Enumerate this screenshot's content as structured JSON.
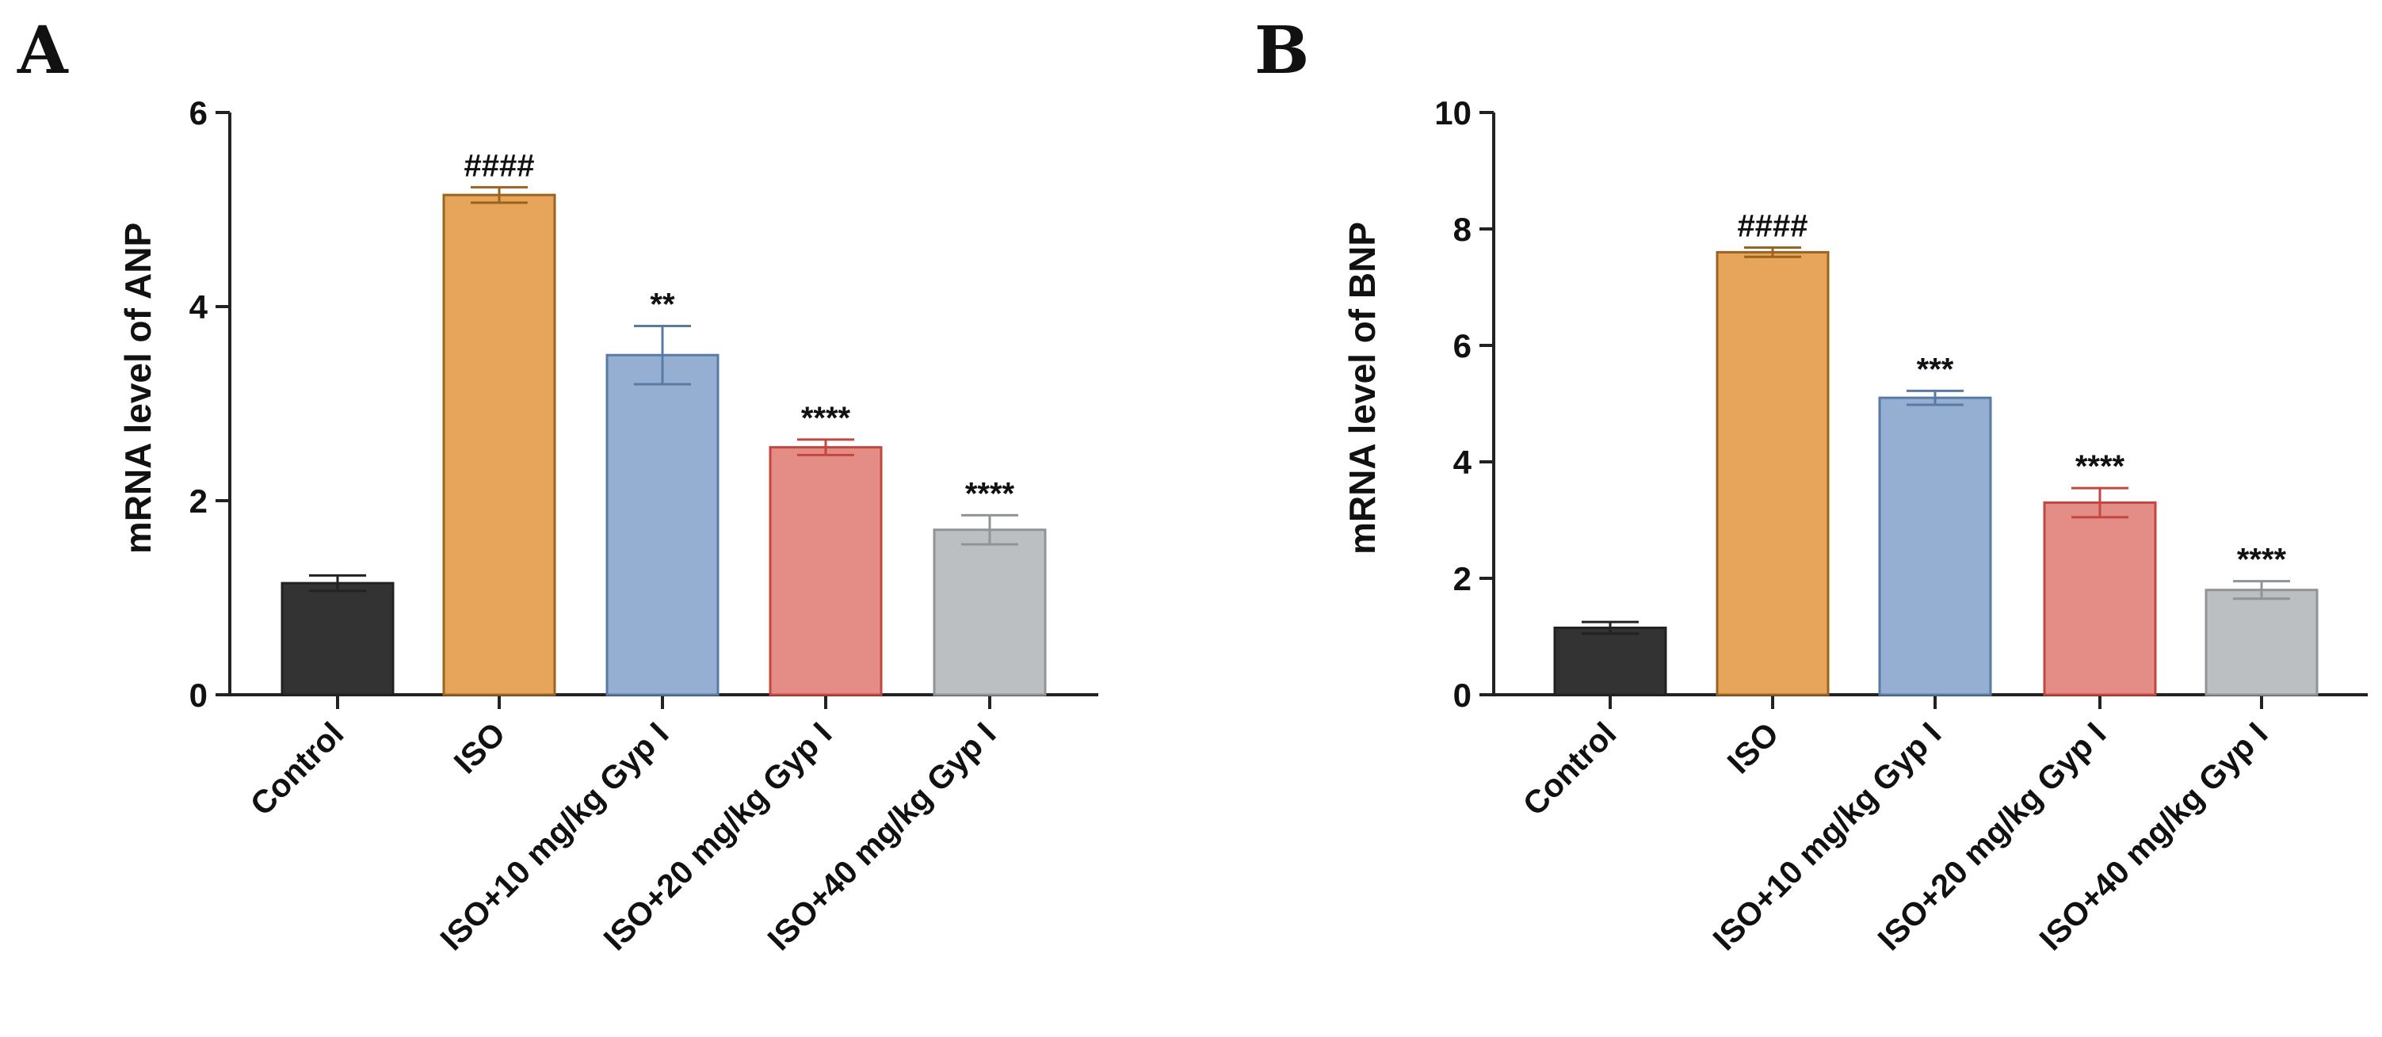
{
  "chart_data": [
    {
      "type": "bar",
      "panel_label": "A",
      "ylabel": "mRNA level of ANP",
      "xlabel": "",
      "ylim": [
        0,
        6
      ],
      "yticks": [
        0,
        2,
        4,
        6
      ],
      "ytick_labels": [
        "0",
        "2",
        "4",
        "6"
      ],
      "categories": [
        "Control",
        "ISO",
        "ISO+10 mg/kg Gyp I",
        "ISO+20 mg/kg Gyp I",
        "ISO+40 mg/kg Gyp I"
      ],
      "values": [
        1.15,
        5.15,
        3.5,
        2.55,
        1.7
      ],
      "errors": [
        0.08,
        0.08,
        0.3,
        0.08,
        0.15
      ],
      "annotations": [
        "",
        "####",
        "**",
        "****",
        "****"
      ],
      "colors": {
        "fill": [
          "#333333",
          "#e6a55a",
          "#94afd2",
          "#e48d87",
          "#bbbfc2"
        ],
        "stroke": [
          "#222222",
          "#9a6420",
          "#5a7aa6",
          "#c4473f",
          "#8f9498"
        ]
      }
    },
    {
      "type": "bar",
      "panel_label": "B",
      "ylabel": "mRNA level of BNP",
      "xlabel": "",
      "ylim": [
        0,
        10
      ],
      "yticks": [
        0,
        2,
        4,
        6,
        8,
        10
      ],
      "ytick_labels": [
        "0",
        "2",
        "4",
        "6",
        "8",
        "10"
      ],
      "categories": [
        "Control",
        "ISO",
        "ISO+10 mg/kg Gyp I",
        "ISO+20 mg/kg Gyp I",
        "ISO+40 mg/kg Gyp I"
      ],
      "values": [
        1.15,
        7.6,
        5.1,
        3.3,
        1.8
      ],
      "errors": [
        0.1,
        0.08,
        0.12,
        0.25,
        0.15
      ],
      "annotations": [
        "",
        "####",
        "***",
        "****",
        "****"
      ],
      "colors": {
        "fill": [
          "#333333",
          "#e6a55a",
          "#94afd2",
          "#e48d87",
          "#bbbfc2"
        ],
        "stroke": [
          "#222222",
          "#9a6420",
          "#5a7aa6",
          "#c4473f",
          "#8f9498"
        ]
      }
    }
  ]
}
